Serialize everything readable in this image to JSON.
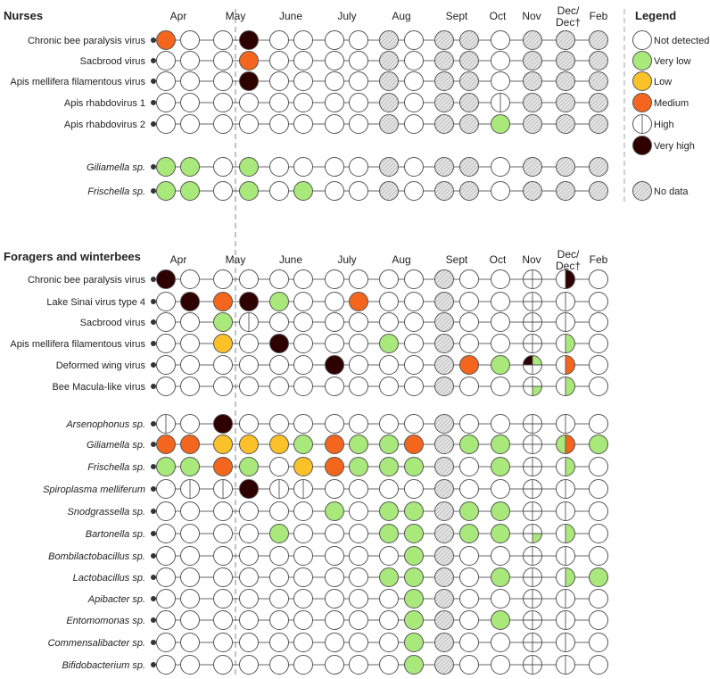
{
  "chart_data": {
    "type": "table",
    "legend": {
      "title": "Legend",
      "items": [
        {
          "key": "N",
          "label": "Not detected",
          "color": "#ffffff"
        },
        {
          "key": "VL",
          "label": "Very low",
          "color": "#a9e87a"
        },
        {
          "key": "L",
          "label": "Low",
          "color": "#fbc128"
        },
        {
          "key": "M",
          "label": "Medium",
          "color": "#f4661d"
        },
        {
          "key": "H",
          "label": "High",
          "color": "#c40000"
        },
        {
          "key": "VH",
          "label": "Very high",
          "color": "#2e0000"
        },
        {
          "key": "X",
          "label": "No data",
          "color": "#d9d9d9"
        }
      ]
    },
    "panels": [
      {
        "title": "Nurses",
        "months": [
          "Apr",
          "May",
          "June",
          "July",
          "Aug",
          "Sept",
          "Oct",
          "Nov",
          "Dec/\nDec†",
          "Feb"
        ],
        "rows": [
          {
            "label": "Chronic bee paralysis virus",
            "italic": false,
            "values": [
              "M",
              "N",
              "N",
              "VH",
              "N",
              "N",
              "N",
              "N",
              "X",
              "N",
              "X",
              "X",
              "N",
              "X",
              "X",
              "X"
            ]
          },
          {
            "label": "Sacbrood virus",
            "italic": false,
            "values": [
              "N",
              "N",
              "N",
              "M",
              "N",
              "N",
              "N",
              "N",
              "X",
              "N",
              "X",
              "X",
              "N",
              "X",
              "X",
              "X"
            ]
          },
          {
            "label": "Apis mellifera filamentous virus",
            "italic": false,
            "values": [
              "N",
              "N",
              "N",
              "VH",
              "N",
              "N",
              "N",
              "N",
              "X",
              "N",
              "X",
              "X",
              "N",
              "X",
              "X",
              "X"
            ]
          },
          {
            "label": "Apis rhabdovirus 1",
            "italic": false,
            "values": [
              "N",
              "N",
              "N",
              "N",
              "N",
              "N",
              "N",
              "N",
              "X",
              "N",
              "X",
              "X",
              "H",
              "X",
              "X",
              "X"
            ]
          },
          {
            "label": "Apis rhabdovirus 2",
            "italic": false,
            "values": [
              "N",
              "N",
              "N",
              "N",
              "N",
              "N",
              "N",
              "N",
              "X",
              "N",
              "X",
              "X",
              "VL",
              "X",
              "X",
              "X"
            ]
          },
          {
            "label": "Giliamella sp.",
            "italic": true,
            "values": [
              "VL",
              "VL",
              "N",
              "VL",
              "N",
              "N",
              "N",
              "N",
              "X",
              "N",
              "X",
              "X",
              "N",
              "X",
              "X",
              "X"
            ]
          },
          {
            "label": "Frischella sp.",
            "italic": true,
            "values": [
              "VL",
              "VL",
              "N",
              "VL",
              "N",
              "VL",
              "N",
              "N",
              "X",
              "N",
              "X",
              "X",
              "N",
              "X",
              "X",
              "X"
            ]
          }
        ]
      },
      {
        "title": "Foragers and winterbees",
        "months": [
          "Apr",
          "May",
          "June",
          "July",
          "Aug",
          "Sept",
          "Oct",
          "Nov",
          "Dec/\nDec†",
          "Feb"
        ],
        "rows": [
          {
            "label": "Chronic bee paralysis virus",
            "italic": false,
            "values": [
              "VH",
              "N",
              "N",
              "N",
              "N",
              "N",
              "N",
              "N",
              "N",
              "N",
              "X",
              "N",
              "N",
              "Q",
              "Hright:VH",
              "N"
            ]
          },
          {
            "label": "Lake Sinai virus type 4",
            "italic": false,
            "values": [
              "N",
              "VH",
              "M",
              "VH",
              "VL",
              "N",
              "N",
              "M",
              "N",
              "N",
              "X",
              "N",
              "N",
              "Q",
              "H",
              "N"
            ]
          },
          {
            "label": "Sacbrood virus",
            "italic": false,
            "values": [
              "N",
              "N",
              "VL",
              "H",
              "N",
              "N",
              "N",
              "N",
              "N",
              "N",
              "X",
              "N",
              "N",
              "Q",
              "H",
              "N"
            ]
          },
          {
            "label": "Apis mellifera filamentous virus",
            "italic": false,
            "values": [
              "N",
              "N",
              "L",
              "N",
              "VH",
              "N",
              "N",
              "N",
              "VL",
              "N",
              "X",
              "N",
              "N",
              "Q",
              "Hright:VL",
              "N"
            ]
          },
          {
            "label": "Deformed wing virus",
            "italic": false,
            "values": [
              "N",
              "N",
              "N",
              "N",
              "N",
              "N",
              "VH",
              "N",
              "N",
              "N",
              "X",
              "M",
              "VL",
              "Q:VH,VL,N,N",
              "Hright:M",
              "N"
            ]
          },
          {
            "label": "Bee Macula-like virus",
            "italic": false,
            "values": [
              "N",
              "N",
              "N",
              "N",
              "N",
              "N",
              "N",
              "N",
              "N",
              "N",
              "X",
              "N",
              "N",
              "Q:N,N,VL,N",
              "Hright:VL",
              "N"
            ]
          },
          {
            "label": "Arsenophonus sp.",
            "italic": true,
            "values": [
              "H",
              "N",
              "VH",
              "N",
              "N",
              "N",
              "N",
              "N",
              "N",
              "N",
              "X",
              "N",
              "N",
              "Q",
              "H",
              "N"
            ]
          },
          {
            "label": "Giliamella sp.",
            "italic": true,
            "values": [
              "M",
              "M",
              "L",
              "L",
              "L",
              "VL",
              "M",
              "VL",
              "VL",
              "M",
              "X",
              "VL",
              "VL",
              "Q",
              "Hsplit:VL,M",
              "VL"
            ]
          },
          {
            "label": "Frischella sp.",
            "italic": true,
            "values": [
              "VL",
              "VL",
              "M",
              "VL",
              "N",
              "L",
              "M",
              "VL",
              "VL",
              "VL",
              "X",
              "N",
              "VL",
              "Q",
              "Hright:VL",
              "N"
            ]
          },
          {
            "label": "Spiroplasma melliferum",
            "italic": true,
            "values": [
              "N",
              "H",
              "H",
              "VH",
              "H",
              "H",
              "N",
              "N",
              "N",
              "N",
              "X",
              "N",
              "N",
              "Q",
              "H",
              "N"
            ]
          },
          {
            "label": "Snodgrassella sp.",
            "italic": true,
            "values": [
              "N",
              "N",
              "N",
              "N",
              "N",
              "N",
              "VL",
              "N",
              "VL",
              "VL",
              "X",
              "VL",
              "VL",
              "Q",
              "H",
              "N"
            ]
          },
          {
            "label": "Bartonella sp.",
            "italic": true,
            "values": [
              "N",
              "N",
              "N",
              "N",
              "VL",
              "N",
              "N",
              "N",
              "VL",
              "VL",
              "X",
              "VL",
              "VL",
              "Q:N,N,VL,N",
              "Hright:VL",
              "N"
            ]
          },
          {
            "label": "Bombilactobacillus sp.",
            "italic": true,
            "values": [
              "N",
              "N",
              "N",
              "N",
              "N",
              "N",
              "N",
              "N",
              "N",
              "VL",
              "X",
              "N",
              "N",
              "Q",
              "H",
              "N"
            ]
          },
          {
            "label": "Lactobacillus sp.",
            "italic": true,
            "values": [
              "N",
              "N",
              "N",
              "N",
              "N",
              "N",
              "N",
              "N",
              "VL",
              "VL",
              "X",
              "N",
              "VL",
              "Q",
              "Hright:VL",
              "VL"
            ]
          },
          {
            "label": "Apibacter sp.",
            "italic": true,
            "values": [
              "N",
              "N",
              "N",
              "N",
              "N",
              "N",
              "N",
              "N",
              "N",
              "VL",
              "X",
              "N",
              "N",
              "Q",
              "H",
              "N"
            ]
          },
          {
            "label": "Entomomonas sp.",
            "italic": true,
            "values": [
              "N",
              "N",
              "N",
              "N",
              "N",
              "N",
              "N",
              "N",
              "N",
              "VL",
              "X",
              "N",
              "VL",
              "Q",
              "H",
              "N"
            ]
          },
          {
            "label": "Commensalibacter sp.",
            "italic": true,
            "values": [
              "N",
              "N",
              "N",
              "N",
              "N",
              "N",
              "N",
              "N",
              "N",
              "VL",
              "X",
              "N",
              "N",
              "Q",
              "H",
              "N"
            ]
          },
          {
            "label": "Bifidobacterium sp.",
            "italic": true,
            "values": [
              "N",
              "N",
              "N",
              "N",
              "N",
              "N",
              "N",
              "N",
              "N",
              "VL",
              "X",
              "N",
              "N",
              "Q",
              "H",
              "N"
            ]
          }
        ]
      }
    ]
  }
}
